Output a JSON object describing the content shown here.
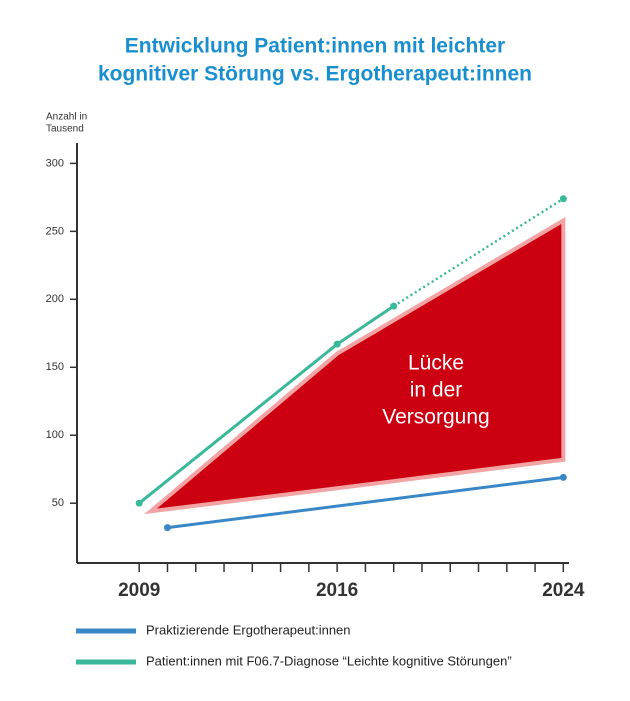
{
  "chart_data": {
    "type": "line",
    "title": [
      "Entwicklung Patient:innen mit leichter",
      "kognitiver Störung vs. Ergotherapeut:innen"
    ],
    "y_label": [
      "Anzahl in",
      "Tausend"
    ],
    "xlim": [
      2006.8,
      2024.2
    ],
    "ylim": [
      6,
      315
    ],
    "xticks": [
      2009,
      2016,
      2024
    ],
    "xminorticks": [
      2010,
      2011,
      2012,
      2013,
      2014,
      2015,
      2017,
      2018,
      2019,
      2020,
      2021,
      2022,
      2023
    ],
    "yticks": [
      50,
      100,
      150,
      200,
      250,
      300
    ],
    "series": [
      {
        "name": "Praktizierende Ergotherapeut:innen",
        "color": "#3a87c8",
        "x": [
          2010,
          2024
        ],
        "values": [
          32,
          69
        ]
      },
      {
        "name": "Patient:innen mit F06.7-Diagnose “Leichte kognitive Störungen”",
        "color": "#3ab89a",
        "x": [
          2009,
          2016,
          2018,
          2024
        ],
        "values": [
          50,
          167,
          195,
          274
        ]
      }
    ],
    "gap": {
      "label": [
        "Lücke",
        "in der",
        "Versorgung"
      ],
      "color": "#cc0010",
      "x": [
        2009.4,
        2016,
        2024
      ],
      "upper": [
        44,
        160,
        258
      ],
      "lower": [
        44,
        61,
        82
      ]
    }
  }
}
